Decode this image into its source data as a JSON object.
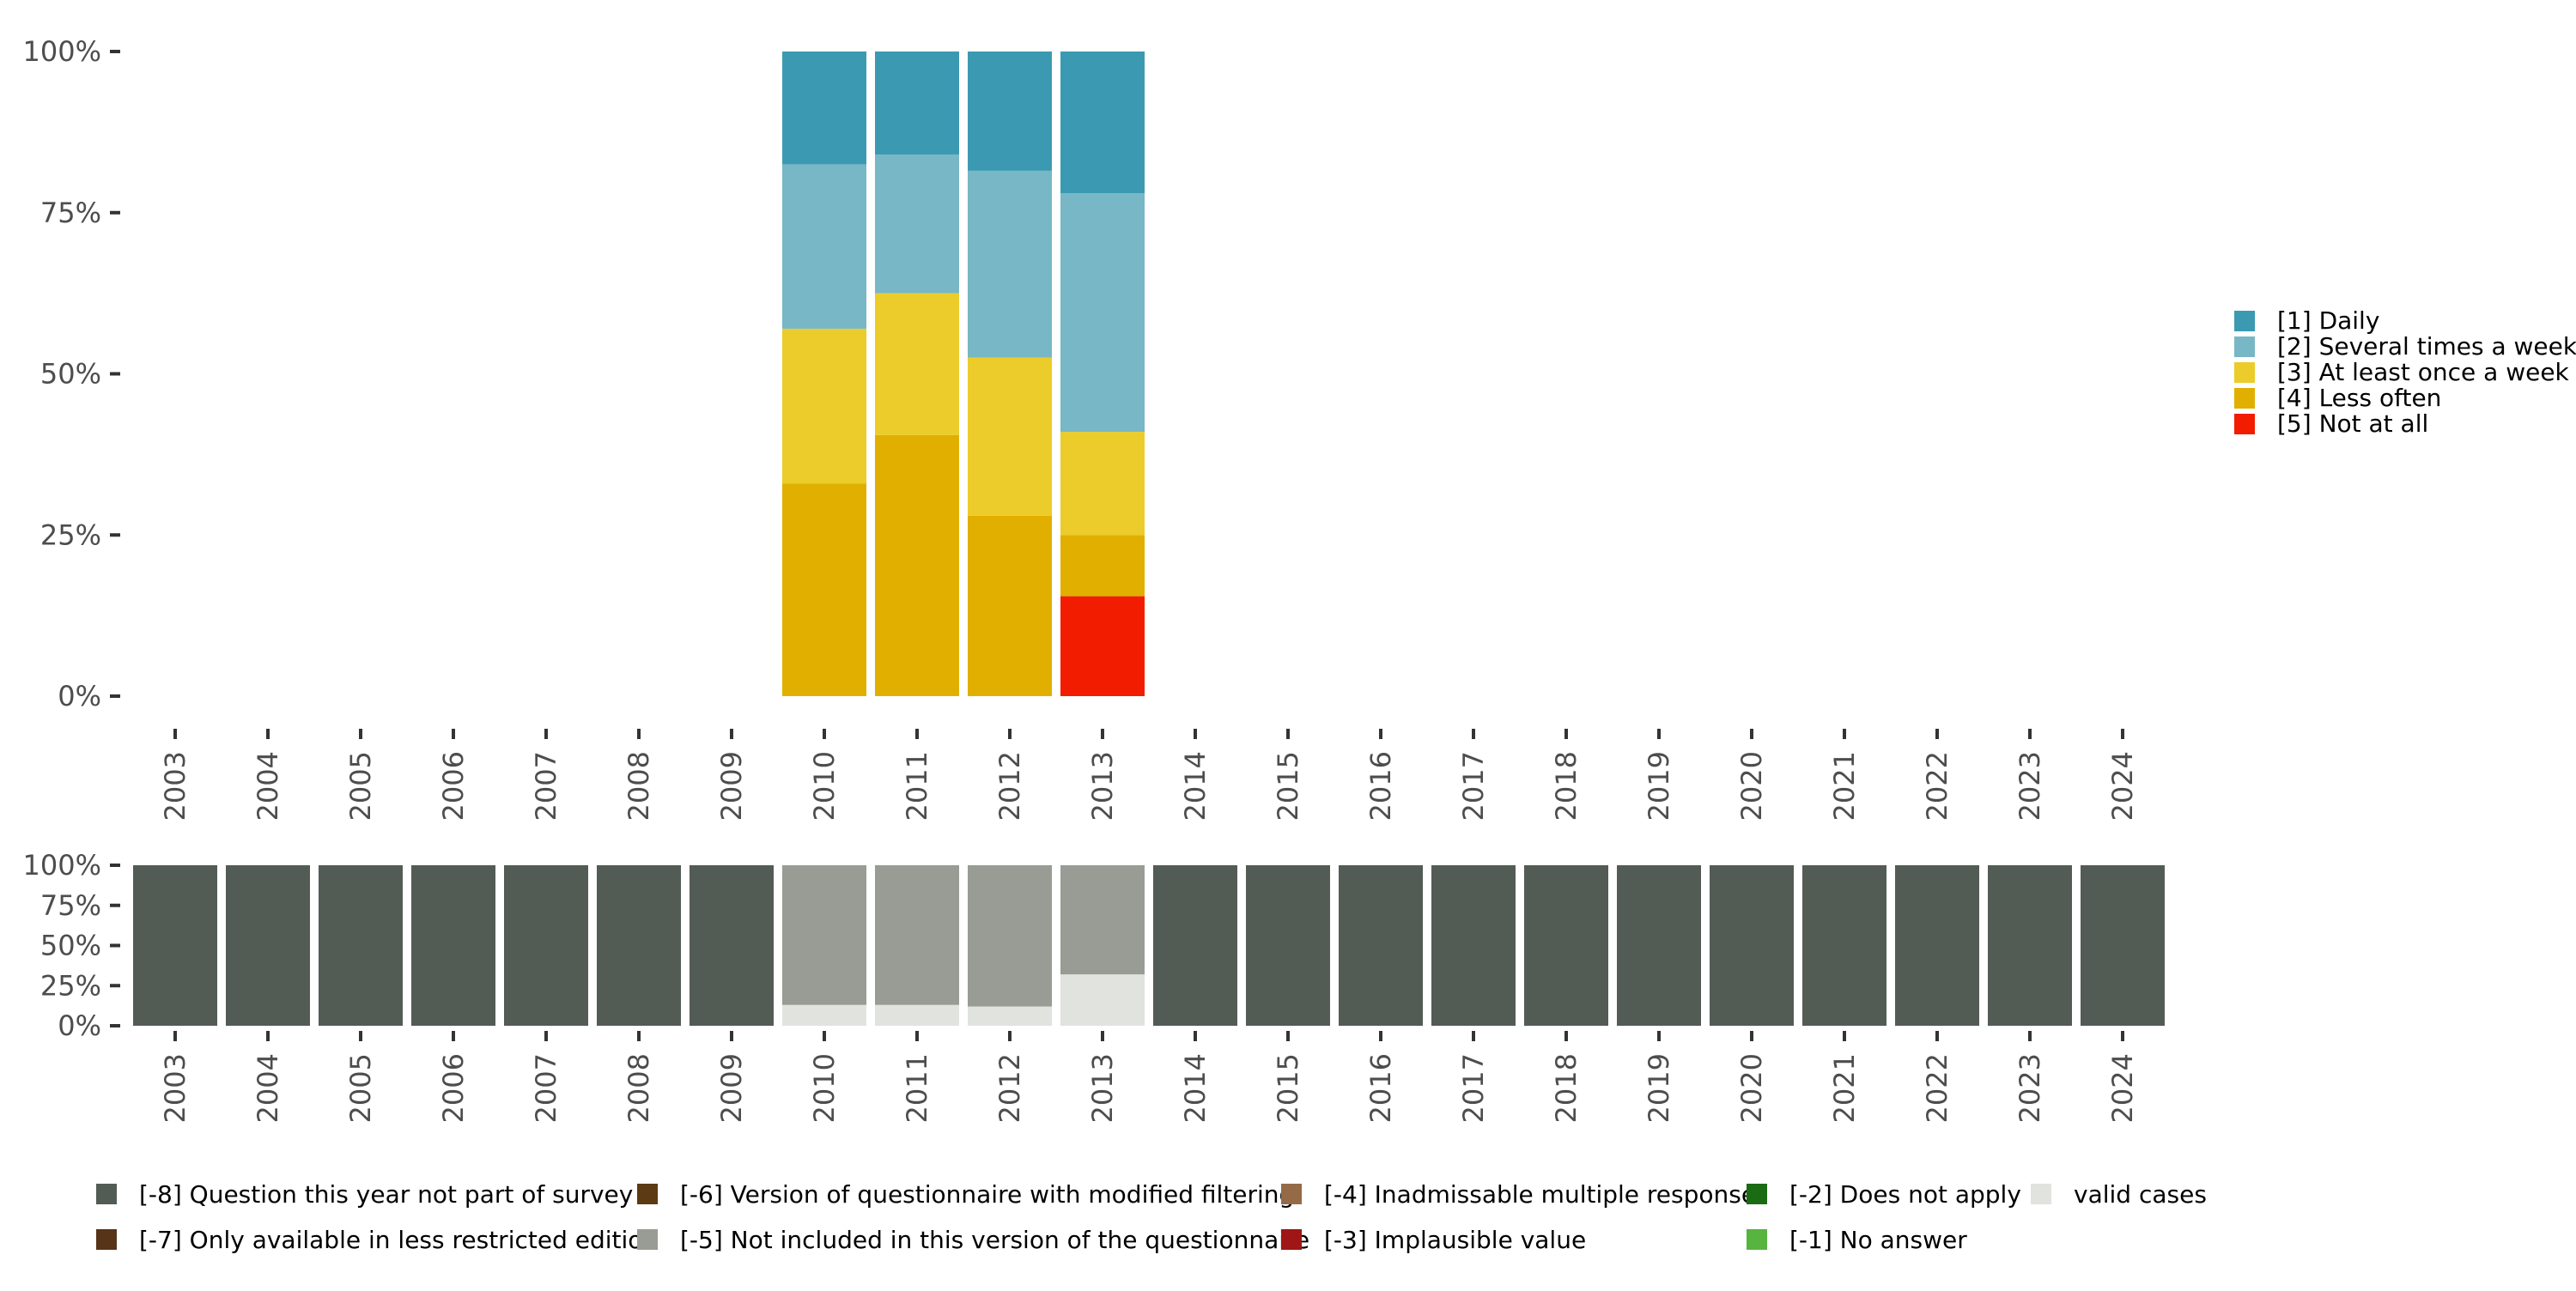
{
  "chart_data": [
    {
      "type": "bar",
      "stacked": true,
      "categories": [
        "2003",
        "2004",
        "2005",
        "2006",
        "2007",
        "2008",
        "2009",
        "2010",
        "2011",
        "2012",
        "2013",
        "2014",
        "2015",
        "2016",
        "2017",
        "2018",
        "2019",
        "2020",
        "2021",
        "2022",
        "2023",
        "2024"
      ],
      "ylim": [
        0,
        100
      ],
      "yticks": [
        "0%",
        "25%",
        "50%",
        "75%",
        "100%"
      ],
      "legend_position": "right",
      "grid": false,
      "series": [
        {
          "name": "[5] Not at all",
          "color": "#f21c00",
          "values": [
            null,
            null,
            null,
            null,
            null,
            null,
            null,
            0,
            0,
            0,
            15.5,
            null,
            null,
            null,
            null,
            null,
            null,
            null,
            null,
            null,
            null,
            null
          ]
        },
        {
          "name": "[4] Less often",
          "color": "#e1af00",
          "values": [
            null,
            null,
            null,
            null,
            null,
            null,
            null,
            33,
            40.5,
            28,
            9.5,
            null,
            null,
            null,
            null,
            null,
            null,
            null,
            null,
            null,
            null,
            null
          ]
        },
        {
          "name": "[3] At least once a week",
          "color": "#ebcc2a",
          "values": [
            null,
            null,
            null,
            null,
            null,
            null,
            null,
            24,
            22,
            24.5,
            16,
            null,
            null,
            null,
            null,
            null,
            null,
            null,
            null,
            null,
            null,
            null
          ]
        },
        {
          "name": "[2] Several times a week",
          "color": "#78b7c5",
          "values": [
            null,
            null,
            null,
            null,
            null,
            null,
            null,
            25.5,
            21.5,
            29,
            37,
            null,
            null,
            null,
            null,
            null,
            null,
            null,
            null,
            null,
            null,
            null
          ]
        },
        {
          "name": "[1] Daily",
          "color": "#3b9ab2",
          "values": [
            null,
            null,
            null,
            null,
            null,
            null,
            null,
            17.5,
            16,
            18.5,
            22,
            null,
            null,
            null,
            null,
            null,
            null,
            null,
            null,
            null,
            null,
            null
          ]
        }
      ],
      "legend_order": [
        "[1] Daily",
        "[2] Several times a week",
        "[3] At least once a week",
        "[4] Less often",
        "[5] Not at all"
      ]
    },
    {
      "type": "bar",
      "stacked": true,
      "categories": [
        "2003",
        "2004",
        "2005",
        "2006",
        "2007",
        "2008",
        "2009",
        "2010",
        "2011",
        "2012",
        "2013",
        "2014",
        "2015",
        "2016",
        "2017",
        "2018",
        "2019",
        "2020",
        "2021",
        "2022",
        "2023",
        "2024"
      ],
      "ylim": [
        0,
        100
      ],
      "yticks": [
        "0%",
        "25%",
        "50%",
        "75%",
        "100%"
      ],
      "legend_position": "bottom",
      "grid": false,
      "series": [
        {
          "name": "valid cases",
          "color": "#e0e3de",
          "values": [
            0,
            0,
            0,
            0,
            0,
            0,
            0,
            13,
            13,
            12,
            32,
            0,
            0,
            0,
            0,
            0,
            0,
            0,
            0,
            0,
            0,
            0
          ]
        },
        {
          "name": "[-5] Not included in this version of the questionnaire",
          "color": "#989c94",
          "values": [
            0,
            0,
            0,
            0,
            0,
            0,
            0,
            87,
            87,
            88,
            68,
            0,
            0,
            0,
            0,
            0,
            0,
            0,
            0,
            0,
            0,
            0
          ]
        },
        {
          "name": "[-8] Question this year not part of survey",
          "color": "#535b55",
          "values": [
            100,
            100,
            100,
            100,
            100,
            100,
            100,
            0,
            0,
            0,
            0,
            100,
            100,
            100,
            100,
            100,
            100,
            100,
            100,
            100,
            100,
            100
          ]
        }
      ],
      "legend_entries": [
        {
          "name": "[-8] Question this year not part of survey",
          "color": "#535b55"
        },
        {
          "name": "[-7] Only available in less restricted edition",
          "color": "#573318"
        },
        {
          "name": "[-6] Version of questionnaire with modified filtering",
          "color": "#5c3a14"
        },
        {
          "name": "[-5] Not included in this version of the questionnaire",
          "color": "#989c94"
        },
        {
          "name": "[-4] Inadmissable multiple response",
          "color": "#956a47"
        },
        {
          "name": "[-3] Implausible value",
          "color": "#a01515"
        },
        {
          "name": "[-2] Does not apply",
          "color": "#1a6b14"
        },
        {
          "name": "[-1] No answer",
          "color": "#56b43f"
        },
        {
          "name": "valid cases",
          "color": "#e0e3de"
        }
      ]
    }
  ]
}
